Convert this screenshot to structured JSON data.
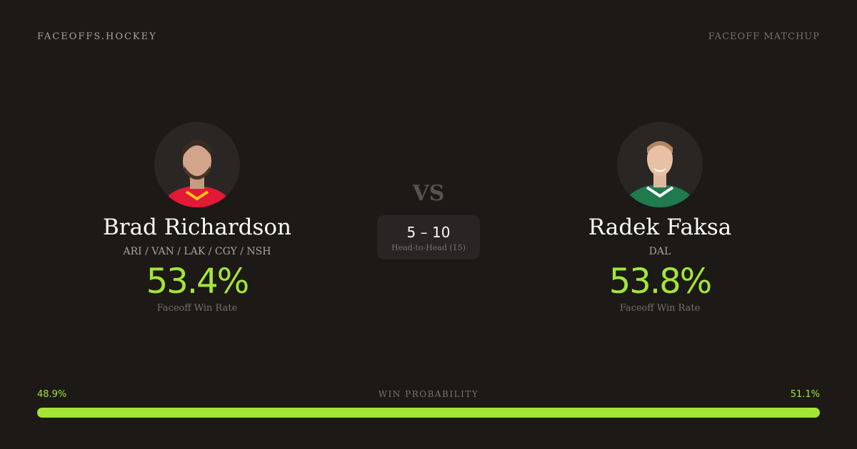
{
  "header": {
    "brand": "FACEOFFS.HOCKEY",
    "tag": "FACEOFF MATCHUP"
  },
  "players": [
    {
      "name": "Brad Richardson",
      "teams": "ARI / VAN / LAK / CGY / NSH",
      "rate": "53.4%",
      "rate_label": "Faceoff Win Rate",
      "jersey_color": "#e31937"
    },
    {
      "name": "Radek Faksa",
      "teams": "DAL",
      "rate": "53.8%",
      "rate_label": "Faceoff Win Rate",
      "jersey_color": "#1f7a4d"
    }
  ],
  "vs": "VS",
  "head_to_head": {
    "score": "5 – 10",
    "label": "Head-to-Head (15)"
  },
  "win_probability": {
    "title": "WIN PROBABILITY",
    "left": "48.9%",
    "right": "51.1%",
    "fill_percent": 100
  },
  "colors": {
    "accent": "#a3e635",
    "background": "#1c1917"
  }
}
